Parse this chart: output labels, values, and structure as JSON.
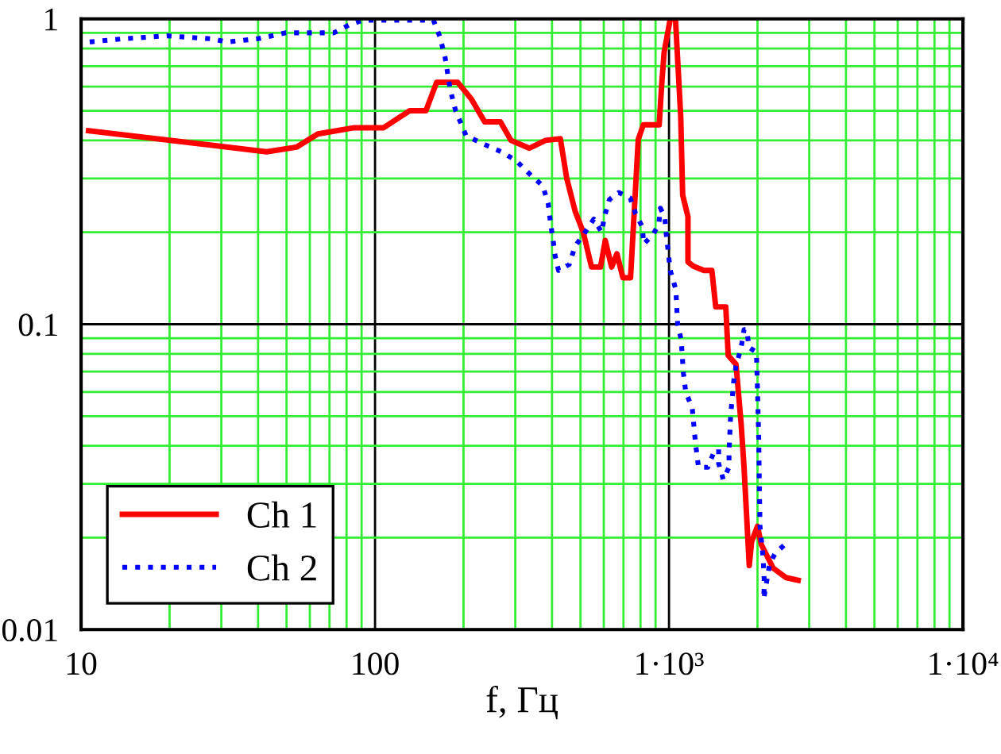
{
  "chart_data": {
    "type": "line",
    "xlabel": "f, Гц",
    "log": "xy",
    "grid": true,
    "legend": "bottom left",
    "xlim": [
      10,
      10000
    ],
    "ylim": [
      0.01,
      1
    ],
    "xticks": [
      10,
      {
        "value": 20,
        "label": null
      },
      {
        "value": 30,
        "label": null
      },
      {
        "value": 40,
        "label": null
      },
      {
        "value": 50,
        "label": null
      },
      {
        "value": 60,
        "label": null
      },
      {
        "value": 70,
        "label": null
      },
      {
        "value": 80,
        "label": null
      },
      {
        "value": 90,
        "label": null
      },
      100,
      {
        "value": 200,
        "label": null
      },
      {
        "value": 300,
        "label": null
      },
      {
        "value": 400,
        "label": null
      },
      {
        "value": 500,
        "label": null
      },
      {
        "value": 600,
        "label": null
      },
      {
        "value": 700,
        "label": null
      },
      {
        "value": 800,
        "label": null
      },
      {
        "value": 900,
        "label": null
      },
      {
        "value": 1000,
        "label": "1·10³"
      },
      {
        "value": 2000,
        "label": null
      },
      {
        "value": 3000,
        "label": null
      },
      {
        "value": 4000,
        "label": null
      },
      {
        "value": 5000,
        "label": null
      },
      {
        "value": 6000,
        "label": null
      },
      {
        "value": 7000,
        "label": null
      },
      {
        "value": 8000,
        "label": null
      },
      {
        "value": 9000,
        "label": null
      },
      {
        "value": 10000,
        "label": "1·10⁴"
      }
    ],
    "yticks": [
      0.01,
      {
        "value": 0.02,
        "label": null
      },
      {
        "value": 0.03,
        "label": null
      },
      {
        "value": 0.04,
        "label": null
      },
      {
        "value": 0.05,
        "label": null
      },
      {
        "value": 0.06,
        "label": null
      },
      {
        "value": 0.07,
        "label": null
      },
      {
        "value": 0.08,
        "label": null
      },
      {
        "value": 0.09,
        "label": null
      },
      0.1,
      {
        "value": 0.2,
        "label": null
      },
      {
        "value": 0.3,
        "label": null
      },
      {
        "value": 0.4,
        "label": null
      },
      {
        "value": 0.5,
        "label": null
      },
      {
        "value": 0.6,
        "label": null
      },
      {
        "value": 0.7,
        "label": null
      },
      {
        "value": 0.8,
        "label": null
      },
      {
        "value": 0.9,
        "label": null
      },
      1
    ],
    "series": [
      {
        "name": "Ch 1",
        "color": "#ff0000",
        "line_style": "solid",
        "x": [
          10.6,
          42.8,
          54,
          63.9,
          85,
          107,
          131,
          149,
          162,
          191,
          213,
          236,
          267,
          290,
          335,
          380,
          427,
          449,
          479,
          511,
          545,
          585,
          607,
          638,
          665,
          697,
          740,
          786,
          818,
          926,
          945,
          963,
          1010,
          1052,
          1096,
          1113,
          1160,
          1160,
          1209,
          1314,
          1399,
          1442,
          1560,
          1590,
          1690,
          1760,
          1800,
          1875,
          1910,
          2000,
          2060,
          2260,
          2500,
          2750
        ],
        "values": [
          0.43,
          0.367,
          0.38,
          0.42,
          0.44,
          0.44,
          0.5,
          0.5,
          0.62,
          0.62,
          0.545,
          0.46,
          0.46,
          0.4,
          0.377,
          0.4,
          0.405,
          0.3,
          0.235,
          0.2,
          0.154,
          0.154,
          0.188,
          0.154,
          0.17,
          0.142,
          0.142,
          0.403,
          0.45,
          0.45,
          0.615,
          0.78,
          1.0,
          1.0,
          0.48,
          0.265,
          0.225,
          0.16,
          0.155,
          0.15,
          0.15,
          0.114,
          0.114,
          0.079,
          0.074,
          0.047,
          0.034,
          0.0162,
          0.0194,
          0.0218,
          0.019,
          0.0159,
          0.0148,
          0.0145
        ]
      },
      {
        "name": "Ch 2",
        "color": "#0000ff",
        "line_style": "dotted",
        "x": [
          10.7,
          13.8,
          19.6,
          27.8,
          31.4,
          39.7,
          49.8,
          72.4,
          82,
          91,
          158,
          166,
          173,
          180,
          188,
          204,
          226,
          272,
          302,
          336,
          372,
          388,
          395,
          403,
          410,
          421,
          458,
          479,
          511,
          555,
          590,
          603,
          627,
          675,
          738,
          770,
          812,
          820,
          880,
          923,
          935,
          968,
          977,
          1010,
          1055,
          1070,
          1100,
          1120,
          1140,
          1200,
          1230,
          1260,
          1355,
          1420,
          1475,
          1475,
          1530,
          1600,
          1600,
          1620,
          1660,
          1690,
          1760,
          1800,
          1840,
          1870,
          1983,
          2000,
          2020,
          2030,
          2040,
          2090,
          2110,
          2100,
          2200,
          2300,
          2480
        ],
        "values": [
          0.84,
          0.86,
          0.88,
          0.86,
          0.84,
          0.86,
          0.9,
          0.9,
          0.957,
          0.99,
          0.99,
          0.876,
          0.75,
          0.59,
          0.5,
          0.415,
          0.395,
          0.365,
          0.343,
          0.31,
          0.284,
          0.249,
          0.216,
          0.19,
          0.167,
          0.15,
          0.157,
          0.18,
          0.196,
          0.221,
          0.2,
          0.225,
          0.256,
          0.27,
          0.259,
          0.23,
          0.208,
          0.183,
          0.196,
          0.212,
          0.24,
          0.223,
          0.2,
          0.15,
          0.13,
          0.1,
          0.089,
          0.069,
          0.06,
          0.053,
          0.041,
          0.034,
          0.034,
          0.038,
          0.039,
          0.035,
          0.031,
          0.034,
          0.038,
          0.05,
          0.065,
          0.073,
          0.084,
          0.096,
          0.096,
          0.084,
          0.081,
          0.061,
          0.042,
          0.029,
          0.0218,
          0.0172,
          0.0142,
          0.0126,
          0.0164,
          0.0178,
          0.019
        ]
      }
    ]
  }
}
